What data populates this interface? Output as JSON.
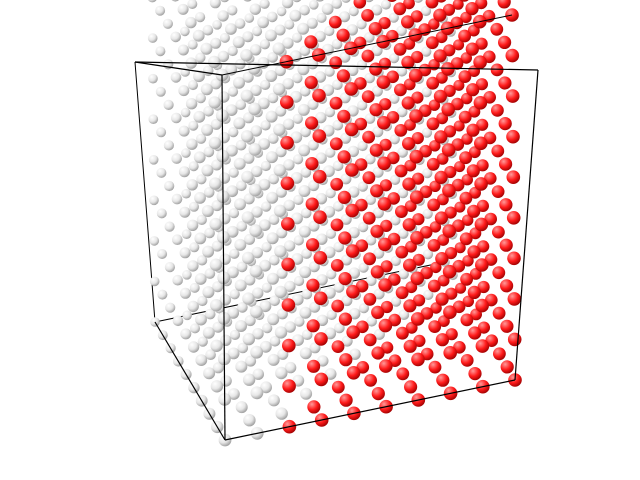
{
  "scene": {
    "description_key": "3d-atom-lattice",
    "colors": {
      "background": "#ffffff",
      "edge": "#000000",
      "white_atom_light": "#ffffff",
      "white_atom_mid": "#e6e6e6",
      "white_atom_dark": "#9a9a9a",
      "red_atom_light": "#ff9a9a",
      "red_atom_mid": "#ff1a1a",
      "red_atom_dark": "#9a0000"
    },
    "lattice": {
      "grid_size": 10,
      "red_region_rule": "x_gt_z_diagonal"
    }
  }
}
